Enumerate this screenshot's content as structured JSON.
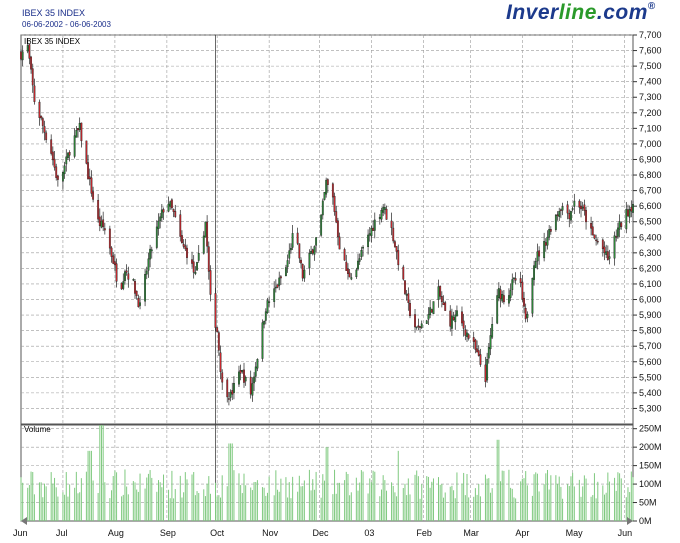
{
  "header": {
    "title": "IBEX 35 INDEX",
    "date_range": "06-06-2002 - 06-06-2003",
    "brand_main": "Inver",
    "brand_accent": "line",
    "brand_suffix": ".com",
    "brand_mark": "®"
  },
  "colors": {
    "up_candle": "#2e8b3a",
    "down_candle": "#c8282e",
    "volume_bar": "#7fc97f",
    "grid": "#9a9a9a",
    "frame": "#555555",
    "price_label": "#cc2222",
    "volume_label": "#2a9a2a"
  },
  "chart_data": {
    "type": "candlestick",
    "price_panel": {
      "label": "IBEX 35 INDEX",
      "ylim": [
        5200,
        7700
      ],
      "y_ticks": [
        5300,
        5400,
        5500,
        5600,
        5700,
        5800,
        5900,
        6000,
        6100,
        6200,
        6300,
        6400,
        6500,
        6600,
        6700,
        6800,
        6900,
        7000,
        7100,
        7200,
        7300,
        7400,
        7500,
        7600,
        7700
      ],
      "y_tick_labels": [
        "5,300",
        "5,400",
        "5,500",
        "5,600",
        "5,700",
        "5,800",
        "5,900",
        "6,000",
        "6,100",
        "6,200",
        "6,300",
        "6,400",
        "6,500",
        "6,600",
        "6,700",
        "6,800",
        "6,900",
        "7,000",
        "7,100",
        "7,200",
        "7,300",
        "7,400",
        "7,500",
        "7,600",
        "7,700"
      ],
      "close_anchors": [
        [
          "2002-06-06",
          7580
        ],
        [
          "2002-06-10",
          7620
        ],
        [
          "2002-06-14",
          7280
        ],
        [
          "2002-06-18",
          7150
        ],
        [
          "2002-06-24",
          6950
        ],
        [
          "2002-06-28",
          6750
        ],
        [
          "2002-07-02",
          6850
        ],
        [
          "2002-07-06",
          7000
        ],
        [
          "2002-07-11",
          7100
        ],
        [
          "2002-07-16",
          6800
        ],
        [
          "2002-07-22",
          6500
        ],
        [
          "2002-07-26",
          6450
        ],
        [
          "2002-07-31",
          6250
        ],
        [
          "2002-08-04",
          6050
        ],
        [
          "2002-08-07",
          6200
        ],
        [
          "2002-08-12",
          6100
        ],
        [
          "2002-08-16",
          5950
        ],
        [
          "2002-08-21",
          6250
        ],
        [
          "2002-08-26",
          6450
        ],
        [
          "2002-09-01",
          6650
        ],
        [
          "2002-09-05",
          6550
        ],
        [
          "2002-09-10",
          6350
        ],
        [
          "2002-09-13",
          6300
        ],
        [
          "2002-09-18",
          6150
        ],
        [
          "2002-09-24",
          6500
        ],
        [
          "2002-09-27",
          6000
        ],
        [
          "2002-10-01",
          5800
        ],
        [
          "2002-10-04",
          5450
        ],
        [
          "2002-10-09",
          5380
        ],
        [
          "2002-10-15",
          5550
        ],
        [
          "2002-10-21",
          5400
        ],
        [
          "2002-10-26",
          5700
        ],
        [
          "2002-10-30",
          5950
        ],
        [
          "2002-11-04",
          6050
        ],
        [
          "2002-11-11",
          6200
        ],
        [
          "2002-11-16",
          6450
        ],
        [
          "2002-11-21",
          6150
        ],
        [
          "2002-11-26",
          6300
        ],
        [
          "2002-12-01",
          6450
        ],
        [
          "2002-12-05",
          6750
        ],
        [
          "2002-12-09",
          6650
        ],
        [
          "2002-12-13",
          6350
        ],
        [
          "2002-12-18",
          6150
        ],
        [
          "2002-12-23",
          6200
        ],
        [
          "2002-12-28",
          6350
        ],
        [
          "2003-01-03",
          6500
        ],
        [
          "2003-01-08",
          6600
        ],
        [
          "2003-01-13",
          6450
        ],
        [
          "2003-01-18",
          6200
        ],
        [
          "2003-01-23",
          5950
        ],
        [
          "2003-01-28",
          5800
        ],
        [
          "2003-02-04",
          5900
        ],
        [
          "2003-02-10",
          6050
        ],
        [
          "2003-02-16",
          5850
        ],
        [
          "2003-02-21",
          5900
        ],
        [
          "2003-02-26",
          5800
        ],
        [
          "2003-03-03",
          5700
        ],
        [
          "2003-03-10",
          5500
        ],
        [
          "2003-03-14",
          5850
        ],
        [
          "2003-03-18",
          6050
        ],
        [
          "2003-03-22",
          6000
        ],
        [
          "2003-03-26",
          6100
        ],
        [
          "2003-03-30",
          6150
        ],
        [
          "2003-04-03",
          5850
        ],
        [
          "2003-04-08",
          6250
        ],
        [
          "2003-04-14",
          6350
        ],
        [
          "2003-04-19",
          6500
        ],
        [
          "2003-04-24",
          6600
        ],
        [
          "2003-04-29",
          6550
        ],
        [
          "2003-05-03",
          6650
        ],
        [
          "2003-05-08",
          6550
        ],
        [
          "2003-05-13",
          6400
        ],
        [
          "2003-05-18",
          6350
        ],
        [
          "2003-05-22",
          6250
        ],
        [
          "2003-05-28",
          6450
        ],
        [
          "2003-06-02",
          6550
        ],
        [
          "2003-06-06",
          6620
        ]
      ]
    },
    "volume_panel": {
      "label": "Volume",
      "ylim": [
        0,
        260
      ],
      "y_ticks": [
        0,
        50,
        100,
        150,
        200,
        250
      ],
      "y_tick_labels": [
        "0M",
        "50M",
        "100M",
        "150M",
        "200M",
        "250M"
      ],
      "unit": "M",
      "typical_range": [
        60,
        140
      ],
      "peaks": [
        [
          "2002-07-24",
          260
        ],
        [
          "2002-07-17",
          190
        ],
        [
          "2002-10-09",
          210
        ],
        [
          "2002-12-06",
          200
        ],
        [
          "2003-03-17",
          220
        ],
        [
          "2003-01-18",
          190
        ]
      ]
    },
    "x_axis": {
      "start": "2002-06-06",
      "end": "2003-06-06",
      "ticks": [
        {
          "date": "2002-06-03",
          "label": "Jun"
        },
        {
          "date": "2002-07-01",
          "label": "Jul"
        },
        {
          "date": "2002-08-01",
          "label": "Aug"
        },
        {
          "date": "2002-09-01",
          "label": "Sep"
        },
        {
          "date": "2002-10-01",
          "label": "Oct"
        },
        {
          "date": "2002-11-01",
          "label": "Nov"
        },
        {
          "date": "2002-12-01",
          "label": "Dec"
        },
        {
          "date": "2003-01-01",
          "label": "03"
        },
        {
          "date": "2003-02-01",
          "label": "Feb"
        },
        {
          "date": "2003-03-01",
          "label": "Mar"
        },
        {
          "date": "2003-04-01",
          "label": "Apr"
        },
        {
          "date": "2003-05-01",
          "label": "May"
        },
        {
          "date": "2003-06-01",
          "label": "Jun"
        }
      ],
      "cursor_date": "2002-09-30"
    },
    "grid": true
  }
}
